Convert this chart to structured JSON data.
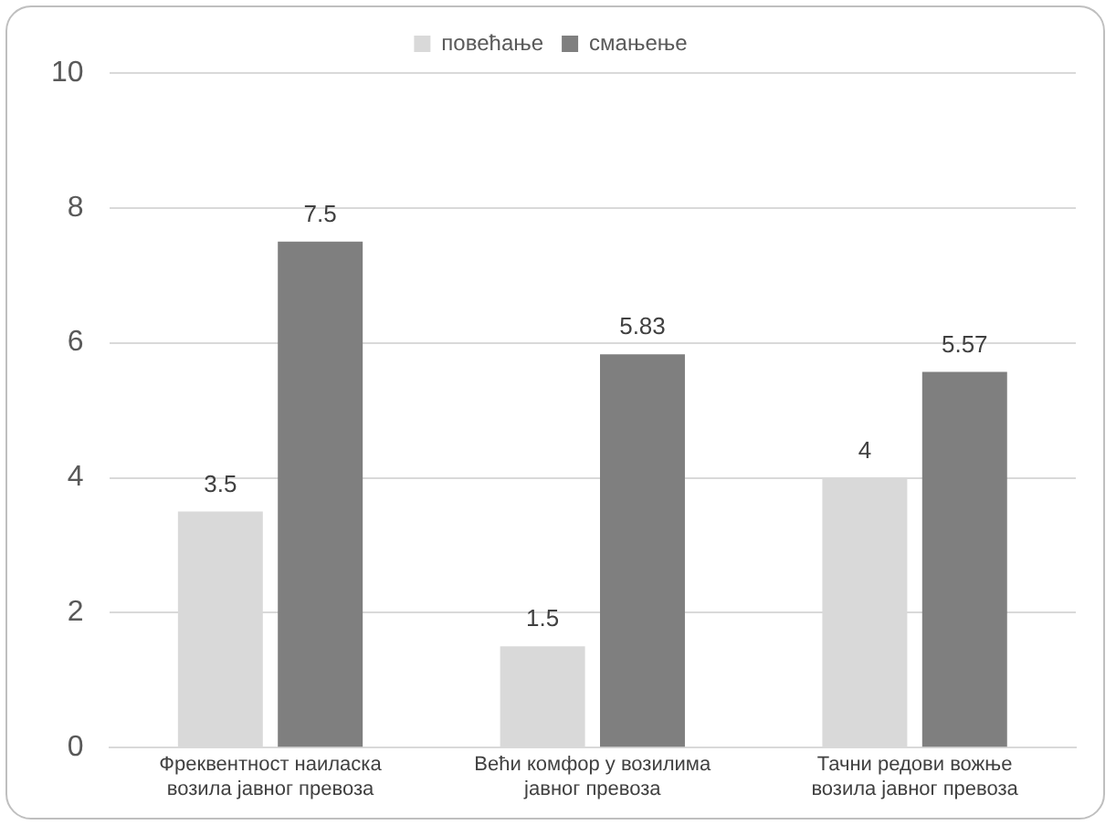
{
  "chart_data": {
    "type": "bar",
    "categories": [
      "Фреквентност наиласка возила јавног превоза",
      "Већи комфор у возилима јавног превоза",
      "Тачни редови вожње возила јавног превоза"
    ],
    "series": [
      {
        "name": "повећање",
        "color": "#d9d9d9",
        "values": [
          3.5,
          1.5,
          4
        ]
      },
      {
        "name": "смањење",
        "color": "#7f7f7f",
        "values": [
          7.5,
          5.83,
          5.57
        ]
      }
    ],
    "ylim": [
      0,
      10
    ],
    "yticks": [
      0,
      2,
      4,
      6,
      8,
      10
    ],
    "grid": "y",
    "legend": "top",
    "data_labels": true
  }
}
